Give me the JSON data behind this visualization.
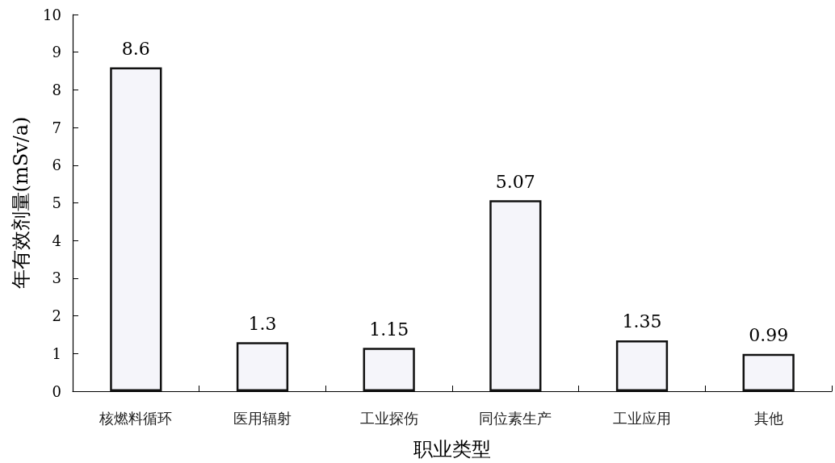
{
  "chart_data": {
    "type": "bar",
    "xlabel": "职业类型",
    "ylabel": "年有效剂量(mSv/a)",
    "categories": [
      "核燃料循环",
      "医用辐射",
      "工业探伤",
      "同位素生产",
      "工业应用",
      "其他"
    ],
    "values": [
      8.6,
      1.3,
      1.15,
      5.07,
      1.35,
      0.99
    ],
    "color": "#f5f5fa",
    "ylim": [
      0,
      10
    ],
    "yticks": [
      0,
      1,
      2,
      3,
      4,
      5,
      6,
      7,
      8,
      9,
      10
    ],
    "data_labels": true
  }
}
